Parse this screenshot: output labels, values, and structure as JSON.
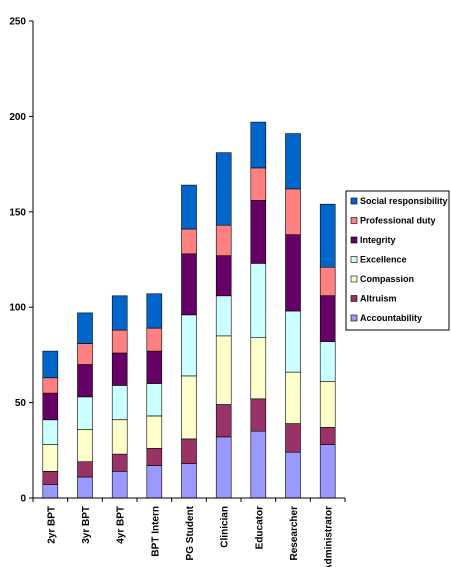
{
  "chart_data": {
    "type": "bar",
    "stacked": true,
    "categories": [
      "2yr BPT",
      "3yr BPT",
      "4yr BPT",
      "BPT Intern",
      "PG Student",
      "Clinician",
      "Educator",
      "Researcher",
      "Administrator"
    ],
    "ylim": [
      0,
      250
    ],
    "yticks": [
      0,
      50,
      100,
      150,
      200,
      250
    ],
    "grid": false,
    "legend_position": "right",
    "series": [
      {
        "name": "Accountability",
        "color": "#9999ff",
        "values": [
          7,
          11,
          14,
          17,
          18,
          32,
          35,
          24,
          28
        ]
      },
      {
        "name": "Altruism",
        "color": "#993366",
        "values": [
          7,
          8,
          9,
          9,
          13,
          17,
          17,
          15,
          9
        ]
      },
      {
        "name": "Compassion",
        "color": "#ffffcc",
        "values": [
          14,
          17,
          18,
          17,
          33,
          36,
          32,
          27,
          24
        ]
      },
      {
        "name": "Excellence",
        "color": "#ccffff",
        "values": [
          13,
          17,
          18,
          17,
          32,
          21,
          39,
          32,
          21
        ]
      },
      {
        "name": "Integrity",
        "color": "#660066",
        "values": [
          14,
          17,
          17,
          17,
          32,
          21,
          33,
          40,
          24
        ]
      },
      {
        "name": "Professional duty",
        "color": "#ff8080",
        "values": [
          8,
          11,
          12,
          12,
          13,
          16,
          17,
          24,
          15
        ]
      },
      {
        "name": "Social responsibility",
        "color": "#0066cc",
        "values": [
          14,
          16,
          18,
          18,
          23,
          38,
          24,
          29,
          33
        ]
      }
    ]
  }
}
